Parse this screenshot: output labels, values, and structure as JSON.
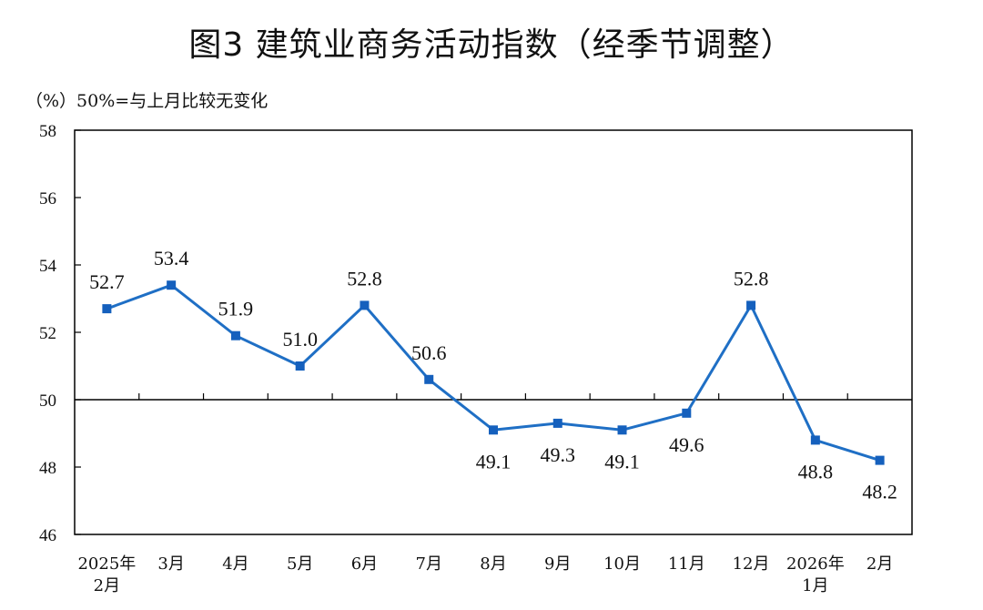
{
  "title": "图3  建筑业商务活动指数（经季节调整）",
  "unit_note": "（%）50%=与上月比较无变化",
  "colors": {
    "series": "#1f6fc5",
    "marker": "#1560bd",
    "axis": "#000000"
  },
  "chart_data": {
    "type": "line",
    "categories": [
      [
        "2025年",
        "2月"
      ],
      [
        "3月"
      ],
      [
        "4月"
      ],
      [
        "5月"
      ],
      [
        "6月"
      ],
      [
        "7月"
      ],
      [
        "8月"
      ],
      [
        "9月"
      ],
      [
        "10月"
      ],
      [
        "11月"
      ],
      [
        "12月"
      ],
      [
        "2026年",
        "1月"
      ],
      [
        "2月"
      ]
    ],
    "values": [
      52.7,
      53.4,
      51.9,
      51.0,
      52.8,
      50.6,
      49.1,
      49.3,
      49.1,
      49.6,
      52.8,
      48.8,
      48.2
    ],
    "value_labels": [
      "52.7",
      "53.4",
      "51.9",
      "51.0",
      "52.8",
      "50.6",
      "49.1",
      "49.3",
      "49.1",
      "49.6",
      "52.8",
      "48.8",
      "48.2"
    ],
    "label_position": [
      "above",
      "above",
      "above",
      "above",
      "above",
      "above",
      "below",
      "below",
      "below",
      "below",
      "above",
      "below",
      "below"
    ],
    "ylim": [
      46,
      58
    ],
    "yticks": [
      46,
      48,
      50,
      52,
      54,
      56,
      58
    ],
    "reference_line": 50,
    "grid": false,
    "marker": "square"
  }
}
